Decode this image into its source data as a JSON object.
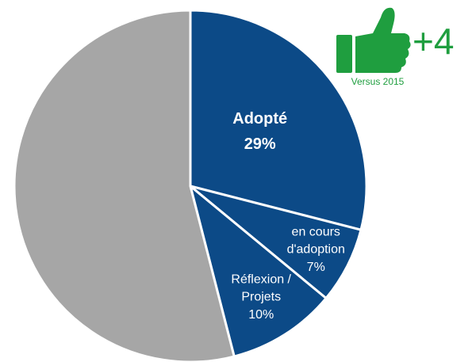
{
  "chart_data": {
    "type": "pie",
    "categories": [
      "Adopté",
      "en cours\nd'adoption",
      "Réflexion /\nProjets",
      null
    ],
    "values": [
      29,
      7,
      10,
      54
    ],
    "value_labels": [
      "29%",
      "7%",
      "10%",
      null
    ],
    "colors": [
      "#0c4a87",
      "#0c4a87",
      "#0c4a87",
      "#a6a6a6"
    ],
    "annotations": {
      "change": "+4",
      "note": "Versus 2015"
    }
  }
}
